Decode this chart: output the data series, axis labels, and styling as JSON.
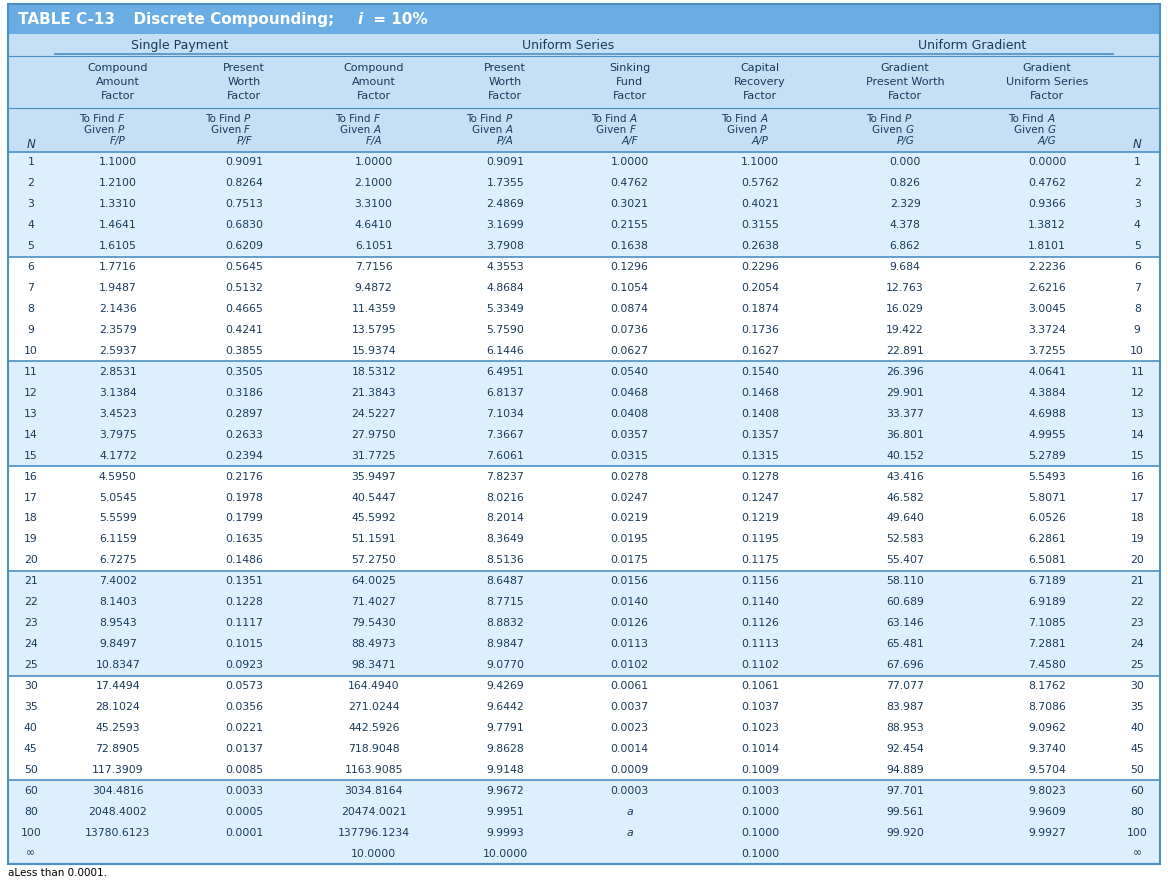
{
  "title_prefix": "TABLE C-13",
  "title_rest": "   Discrete Compounding; ",
  "title_i": "i",
  "title_suffix": " = 10%",
  "title_bg": "#6aade4",
  "header_bg": "#c5dff4",
  "border_color": "#4a90c4",
  "text_color": "#1a3a5c",
  "row_bg_odd": "#ddeeff",
  "row_bg_even": "#ffffff",
  "N": [
    1,
    2,
    3,
    4,
    5,
    6,
    7,
    8,
    9,
    10,
    11,
    12,
    13,
    14,
    15,
    16,
    17,
    18,
    19,
    20,
    21,
    22,
    23,
    24,
    25,
    30,
    35,
    40,
    45,
    50,
    60,
    80,
    100,
    "∞"
  ],
  "FP": [
    "1.1000",
    "1.2100",
    "1.3310",
    "1.4641",
    "1.6105",
    "1.7716",
    "1.9487",
    "2.1436",
    "2.3579",
    "2.5937",
    "2.8531",
    "3.1384",
    "3.4523",
    "3.7975",
    "4.1772",
    "4.5950",
    "5.0545",
    "5.5599",
    "6.1159",
    "6.7275",
    "7.4002",
    "8.1403",
    "8.9543",
    "9.8497",
    "10.8347",
    "17.4494",
    "28.1024",
    "45.2593",
    "72.8905",
    "117.3909",
    "304.4816",
    "2048.4002",
    "13780.6123",
    ""
  ],
  "PF": [
    "0.9091",
    "0.8264",
    "0.7513",
    "0.6830",
    "0.6209",
    "0.5645",
    "0.5132",
    "0.4665",
    "0.4241",
    "0.3855",
    "0.3505",
    "0.3186",
    "0.2897",
    "0.2633",
    "0.2394",
    "0.2176",
    "0.1978",
    "0.1799",
    "0.1635",
    "0.1486",
    "0.1351",
    "0.1228",
    "0.1117",
    "0.1015",
    "0.0923",
    "0.0573",
    "0.0356",
    "0.0221",
    "0.0137",
    "0.0085",
    "0.0033",
    "0.0005",
    "0.0001",
    ""
  ],
  "FA": [
    "1.0000",
    "2.1000",
    "3.3100",
    "4.6410",
    "6.1051",
    "7.7156",
    "9.4872",
    "11.4359",
    "13.5795",
    "15.9374",
    "18.5312",
    "21.3843",
    "24.5227",
    "27.9750",
    "31.7725",
    "35.9497",
    "40.5447",
    "45.5992",
    "51.1591",
    "57.2750",
    "64.0025",
    "71.4027",
    "79.5430",
    "88.4973",
    "98.3471",
    "164.4940",
    "271.0244",
    "442.5926",
    "718.9048",
    "1163.9085",
    "3034.8164",
    "20474.0021",
    "137796.1234",
    "10.0000"
  ],
  "PA": [
    "0.9091",
    "1.7355",
    "2.4869",
    "3.1699",
    "3.7908",
    "4.3553",
    "4.8684",
    "5.3349",
    "5.7590",
    "6.1446",
    "6.4951",
    "6.8137",
    "7.1034",
    "7.3667",
    "7.6061",
    "7.8237",
    "8.0216",
    "8.2014",
    "8.3649",
    "8.5136",
    "8.6487",
    "8.7715",
    "8.8832",
    "8.9847",
    "9.0770",
    "9.4269",
    "9.6442",
    "9.7791",
    "9.8628",
    "9.9148",
    "9.9672",
    "9.9951",
    "9.9993",
    "10.0000"
  ],
  "AF": [
    "1.0000",
    "0.4762",
    "0.3021",
    "0.2155",
    "0.1638",
    "0.1296",
    "0.1054",
    "0.0874",
    "0.0736",
    "0.0627",
    "0.0540",
    "0.0468",
    "0.0408",
    "0.0357",
    "0.0315",
    "0.0278",
    "0.0247",
    "0.0219",
    "0.0195",
    "0.0175",
    "0.0156",
    "0.0140",
    "0.0126",
    "0.0113",
    "0.0102",
    "0.0061",
    "0.0037",
    "0.0023",
    "0.0014",
    "0.0009",
    "0.0003",
    "a",
    "a",
    ""
  ],
  "AP": [
    "1.1000",
    "0.5762",
    "0.4021",
    "0.3155",
    "0.2638",
    "0.2296",
    "0.2054",
    "0.1874",
    "0.1736",
    "0.1627",
    "0.1540",
    "0.1468",
    "0.1408",
    "0.1357",
    "0.1315",
    "0.1278",
    "0.1247",
    "0.1219",
    "0.1195",
    "0.1175",
    "0.1156",
    "0.1140",
    "0.1126",
    "0.1113",
    "0.1102",
    "0.1061",
    "0.1037",
    "0.1023",
    "0.1014",
    "0.1009",
    "0.1003",
    "0.1000",
    "0.1000",
    "0.1000"
  ],
  "PG": [
    "0.000",
    "0.826",
    "2.329",
    "4.378",
    "6.862",
    "9.684",
    "12.763",
    "16.029",
    "19.422",
    "22.891",
    "26.396",
    "29.901",
    "33.377",
    "36.801",
    "40.152",
    "43.416",
    "46.582",
    "49.640",
    "52.583",
    "55.407",
    "58.110",
    "60.689",
    "63.146",
    "65.481",
    "67.696",
    "77.077",
    "83.987",
    "88.953",
    "92.454",
    "94.889",
    "97.701",
    "99.561",
    "99.920",
    ""
  ],
  "AG": [
    "0.0000",
    "0.4762",
    "0.9366",
    "1.3812",
    "1.8101",
    "2.2236",
    "2.6216",
    "3.0045",
    "3.3724",
    "3.7255",
    "4.0641",
    "4.3884",
    "4.6988",
    "4.9955",
    "5.2789",
    "5.5493",
    "5.8071",
    "6.0526",
    "6.2861",
    "6.5081",
    "6.7189",
    "6.9189",
    "7.1085",
    "7.2881",
    "7.4580",
    "8.1762",
    "8.7086",
    "9.0962",
    "9.3740",
    "9.5704",
    "9.8023",
    "9.9609",
    "9.9927",
    ""
  ],
  "footnote": "aLess than 0.0001."
}
